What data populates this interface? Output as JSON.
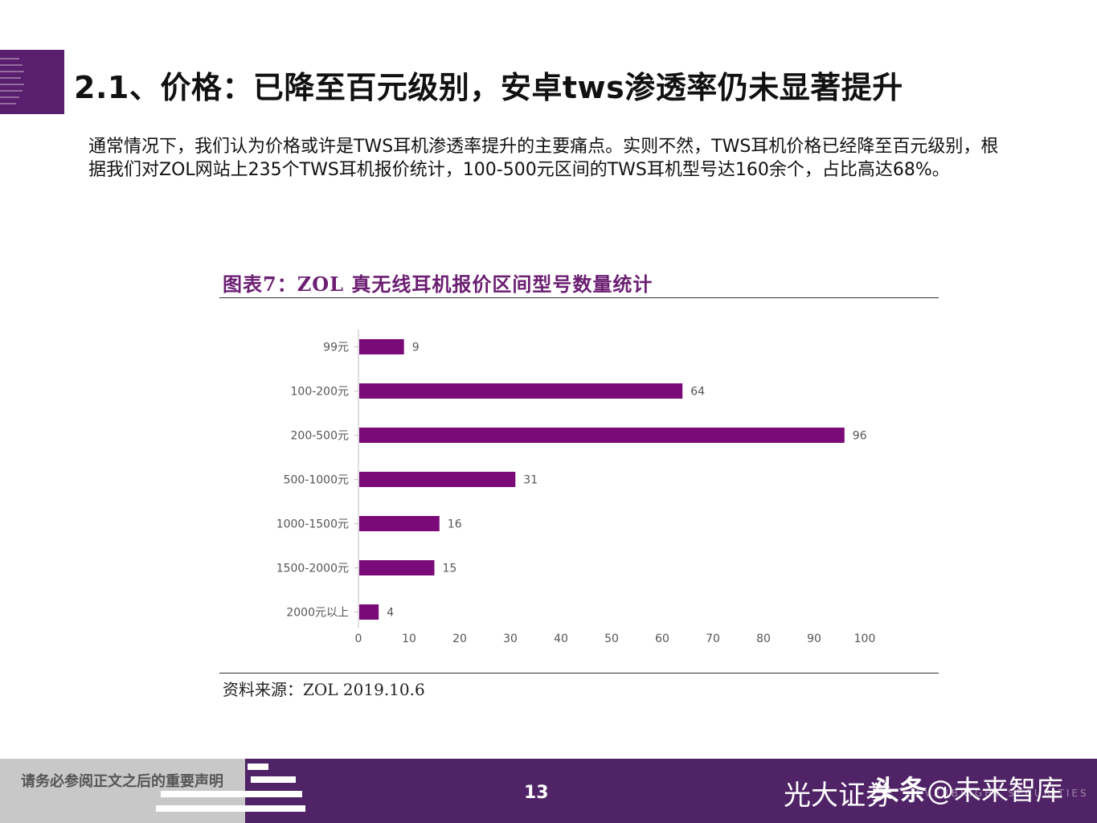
{
  "slide": {
    "title": "2.1、价格：已降至百元级别，安卓tws渗透率仍未显著提升",
    "body": "通常情况下，我们认为价格或许是TWS耳机渗透率提升的主要痛点。实则不然，TWS耳机价格已经降至百元级别，根据我们对ZOL网站上235个TWS耳机报价统计，100-500元区间的TWS耳机型号达160余个，占比高达68%。"
  },
  "figure": {
    "caption": "图表7：ZOL 真无线耳机报价区间型号数量统计",
    "source": "资料来源：ZOL 2019.10.6"
  },
  "chart_data": {
    "type": "bar",
    "orientation": "horizontal",
    "categories": [
      "99元",
      "100-200元",
      "200-500元",
      "500-1000元",
      "1000-1500元",
      "1500-2000元",
      "2000元以上"
    ],
    "values": [
      9,
      64,
      96,
      31,
      16,
      15,
      4
    ],
    "xlim": [
      0,
      100
    ],
    "xticks": [
      0,
      10,
      20,
      30,
      40,
      50,
      60,
      70,
      80,
      90,
      100
    ],
    "grid": false,
    "data_labels": true,
    "bar_color": "#7a0a78"
  },
  "footer": {
    "disclaimer": "请务必参阅正文之后的重要声明",
    "page": "13",
    "brand": "光大证券",
    "watermark_bold": "头条",
    "watermark_rest": "@未来智库",
    "faint_text": "EVERBRIGHT SECURITIES"
  },
  "colors": {
    "accent_purple": "#5a1e6e",
    "footer_purple": "#4f2366",
    "caption_purple": "#6b1e72"
  }
}
